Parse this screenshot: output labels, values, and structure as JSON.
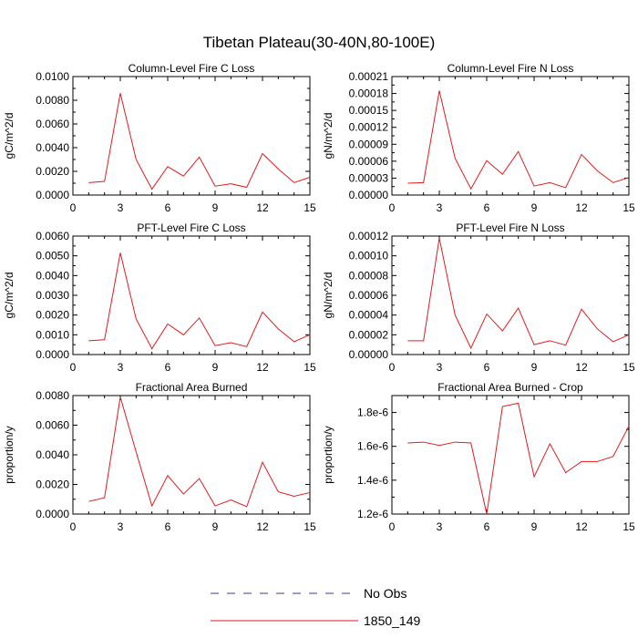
{
  "figure": {
    "title": "Tibetan Plateau(30-40N,80-100E)"
  },
  "legend": [
    {
      "label": "No Obs",
      "color": "#3b3b9a",
      "dash": true
    },
    {
      "label": "1850_149",
      "color": "#e31a1c",
      "dash": false
    }
  ],
  "chart_data": [
    {
      "type": "line",
      "title": "Column-Level Fire C Loss",
      "ylabel": "gC/m^2/d",
      "xlim": [
        0,
        15
      ],
      "ylim": [
        0,
        0.01
      ],
      "xticks": [
        0,
        3,
        6,
        9,
        12,
        15
      ],
      "yticks": [
        0,
        0.002,
        0.004,
        0.006,
        0.008,
        0.01
      ],
      "ytick_labels": [
        "0.0000",
        "0.0020",
        "0.0040",
        "0.0060",
        "0.0080",
        "0.0100"
      ],
      "series": [
        {
          "name": "1850_149",
          "color": "#e31a1c",
          "x": [
            1,
            2,
            3,
            4,
            5,
            6,
            7,
            8,
            9,
            10,
            11,
            12,
            13,
            14,
            15
          ],
          "y": [
            0.00105,
            0.00115,
            0.0086,
            0.003,
            0.0005,
            0.0024,
            0.0016,
            0.0032,
            0.00075,
            0.00095,
            0.00065,
            0.0035,
            0.0022,
            0.00105,
            0.0015
          ]
        }
      ]
    },
    {
      "type": "line",
      "title": "Column-Level Fire N Loss",
      "ylabel": "gN/m^2/d",
      "xlim": [
        0,
        15
      ],
      "ylim": [
        0,
        0.00021
      ],
      "xticks": [
        0,
        3,
        6,
        9,
        12,
        15
      ],
      "yticks": [
        0,
        3e-05,
        6e-05,
        9e-05,
        0.00012,
        0.00015,
        0.00018,
        0.00021
      ],
      "ytick_labels": [
        "0.00000",
        "0.00003",
        "0.00006",
        "0.00009",
        "0.00012",
        "0.00015",
        "0.00018",
        "0.00021"
      ],
      "series": [
        {
          "name": "1850_149",
          "color": "#e31a1c",
          "x": [
            1,
            2,
            3,
            4,
            5,
            6,
            7,
            8,
            9,
            10,
            11,
            12,
            13,
            14,
            15
          ],
          "y": [
            2.1e-05,
            2.2e-05,
            0.000185,
            6.5e-05,
            1.1e-05,
            6.1e-05,
            3.7e-05,
            7.7e-05,
            1.6e-05,
            2.2e-05,
            1.3e-05,
            7.2e-05,
            4.3e-05,
            2.2e-05,
            3.1e-05
          ]
        }
      ]
    },
    {
      "type": "line",
      "title": "PFT-Level Fire C Loss",
      "ylabel": "gC/m^2/d",
      "xlim": [
        0,
        15
      ],
      "ylim": [
        0,
        0.006
      ],
      "xticks": [
        0,
        3,
        6,
        9,
        12,
        15
      ],
      "yticks": [
        0,
        0.001,
        0.002,
        0.003,
        0.004,
        0.005,
        0.006
      ],
      "ytick_labels": [
        "0.0000",
        "0.0010",
        "0.0020",
        "0.0030",
        "0.0040",
        "0.0050",
        "0.0060"
      ],
      "series": [
        {
          "name": "1850_149",
          "color": "#e31a1c",
          "x": [
            1,
            2,
            3,
            4,
            5,
            6,
            7,
            8,
            9,
            10,
            11,
            12,
            13,
            14,
            15
          ],
          "y": [
            0.0007,
            0.00075,
            0.00515,
            0.0018,
            0.0003,
            0.00155,
            0.001,
            0.00185,
            0.00045,
            0.0006,
            0.0004,
            0.00215,
            0.0013,
            0.00065,
            0.001
          ]
        }
      ]
    },
    {
      "type": "line",
      "title": "PFT-Level Fire N Loss",
      "ylabel": "gN/m^2/d",
      "xlim": [
        0,
        15
      ],
      "ylim": [
        0,
        0.00012
      ],
      "xticks": [
        0,
        3,
        6,
        9,
        12,
        15
      ],
      "yticks": [
        0,
        2e-05,
        4e-05,
        6e-05,
        8e-05,
        0.0001,
        0.00012
      ],
      "ytick_labels": [
        "0.00000",
        "0.00002",
        "0.00004",
        "0.00006",
        "0.00008",
        "0.00010",
        "0.00012"
      ],
      "series": [
        {
          "name": "1850_149",
          "color": "#e31a1c",
          "x": [
            1,
            2,
            3,
            4,
            5,
            6,
            7,
            8,
            9,
            10,
            11,
            12,
            13,
            14,
            15
          ],
          "y": [
            1.4e-05,
            1.4e-05,
            0.000118,
            4e-05,
            6.5e-06,
            4.1e-05,
            2.4e-05,
            4.7e-05,
            1e-05,
            1.4e-05,
            9.5e-06,
            4.6e-05,
            2.6e-05,
            1.3e-05,
            2e-05
          ]
        }
      ]
    },
    {
      "type": "line",
      "title": "Fractional Area Burned",
      "ylabel": "proportion/y",
      "xlim": [
        0,
        15
      ],
      "ylim": [
        0,
        0.008
      ],
      "xticks": [
        0,
        3,
        6,
        9,
        12,
        15
      ],
      "yticks": [
        0,
        0.002,
        0.004,
        0.006,
        0.008
      ],
      "ytick_labels": [
        "0.0000",
        "0.0020",
        "0.0040",
        "0.0060",
        "0.0080"
      ],
      "series": [
        {
          "name": "1850_149",
          "color": "#e31a1c",
          "x": [
            1,
            2,
            3,
            4,
            5,
            6,
            7,
            8,
            9,
            10,
            11,
            12,
            13,
            14,
            15
          ],
          "y": [
            0.00085,
            0.0011,
            0.0079,
            0.0042,
            0.00055,
            0.0026,
            0.00135,
            0.0024,
            0.00055,
            0.00095,
            0.0005,
            0.0035,
            0.0015,
            0.0012,
            0.00145
          ]
        }
      ]
    },
    {
      "type": "line",
      "title": "Fractional Area Burned - Crop",
      "ylabel": "proportion/y",
      "xlim": [
        0,
        15
      ],
      "ylim": [
        1.2e-06,
        1.9e-06
      ],
      "xticks": [
        0,
        3,
        6,
        9,
        12,
        15
      ],
      "yticks": [
        1.2e-06,
        1.4e-06,
        1.6e-06,
        1.8e-06
      ],
      "ytick_labels": [
        "1.2e-6",
        "1.4e-6",
        "1.6e-6",
        "1.8e-6"
      ],
      "series": [
        {
          "name": "1850_149",
          "color": "#e31a1c",
          "x": [
            1,
            2,
            3,
            4,
            5,
            6,
            7,
            8,
            9,
            10,
            11,
            12,
            13,
            14,
            15
          ],
          "y": [
            1.62e-06,
            1.625e-06,
            1.605e-06,
            1.625e-06,
            1.62e-06,
            1.2e-06,
            1.835e-06,
            1.855e-06,
            1.42e-06,
            1.615e-06,
            1.445e-06,
            1.51e-06,
            1.51e-06,
            1.54e-06,
            1.72e-06
          ]
        }
      ]
    }
  ]
}
